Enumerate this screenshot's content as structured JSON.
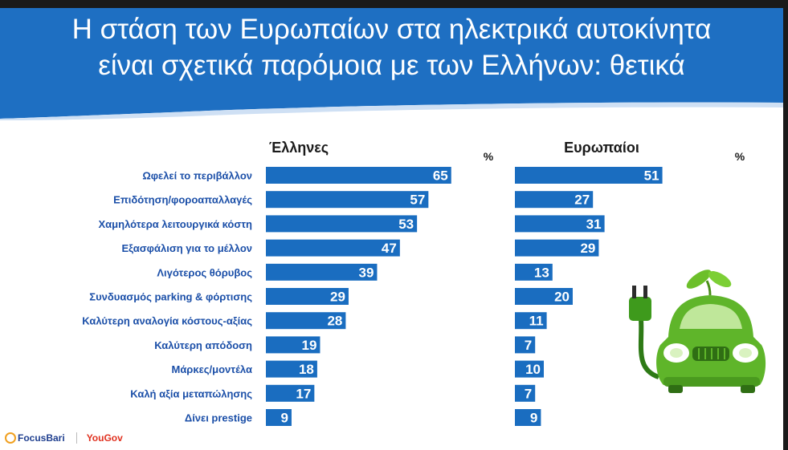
{
  "title_lines": [
    "Η στάση των Ευρωπαίων στα ηλεκτρικά αυτοκίνητα",
    "είναι σχετικά παρόμοια με των Ελλήνων: θετικά"
  ],
  "logos": {
    "focus": "FocusBari",
    "yougov": "YouGov"
  },
  "colors": {
    "header": "#1e6fc2",
    "bar": "#1a6dc0",
    "label": "#1b4fa8"
  },
  "chart_data": {
    "type": "bar",
    "orientation": "horizontal",
    "title": "Η στάση των Ευρωπαίων στα ηλεκτρικά αυτοκίνητα είναι σχετικά παρόμοια με των Ελλήνων: θετικά",
    "unit": "%",
    "categories": [
      "Ωφελεί το περιβάλλον",
      "Επιδότηση/φοροαπαλλαγές",
      "Χαμηλότερα λειτουργικά κόστη",
      "Εξασφάλιση για το μέλλον",
      "Λιγότερος θόρυβος",
      "Συνδυασμός parking & φόρτισης",
      "Καλύτερη αναλογία κόστους-αξίας",
      "Καλύτερη απόδοση",
      "Μάρκες/μοντέλα",
      "Καλή αξία μεταπώλησης",
      "Δίνει prestige"
    ],
    "series": [
      {
        "name": "Έλληνες",
        "values": [
          65,
          57,
          53,
          47,
          39,
          29,
          28,
          19,
          18,
          17,
          9
        ]
      },
      {
        "name": "Ευρωπαίοι",
        "values": [
          51,
          27,
          31,
          29,
          13,
          20,
          11,
          7,
          10,
          7,
          9
        ]
      }
    ]
  }
}
